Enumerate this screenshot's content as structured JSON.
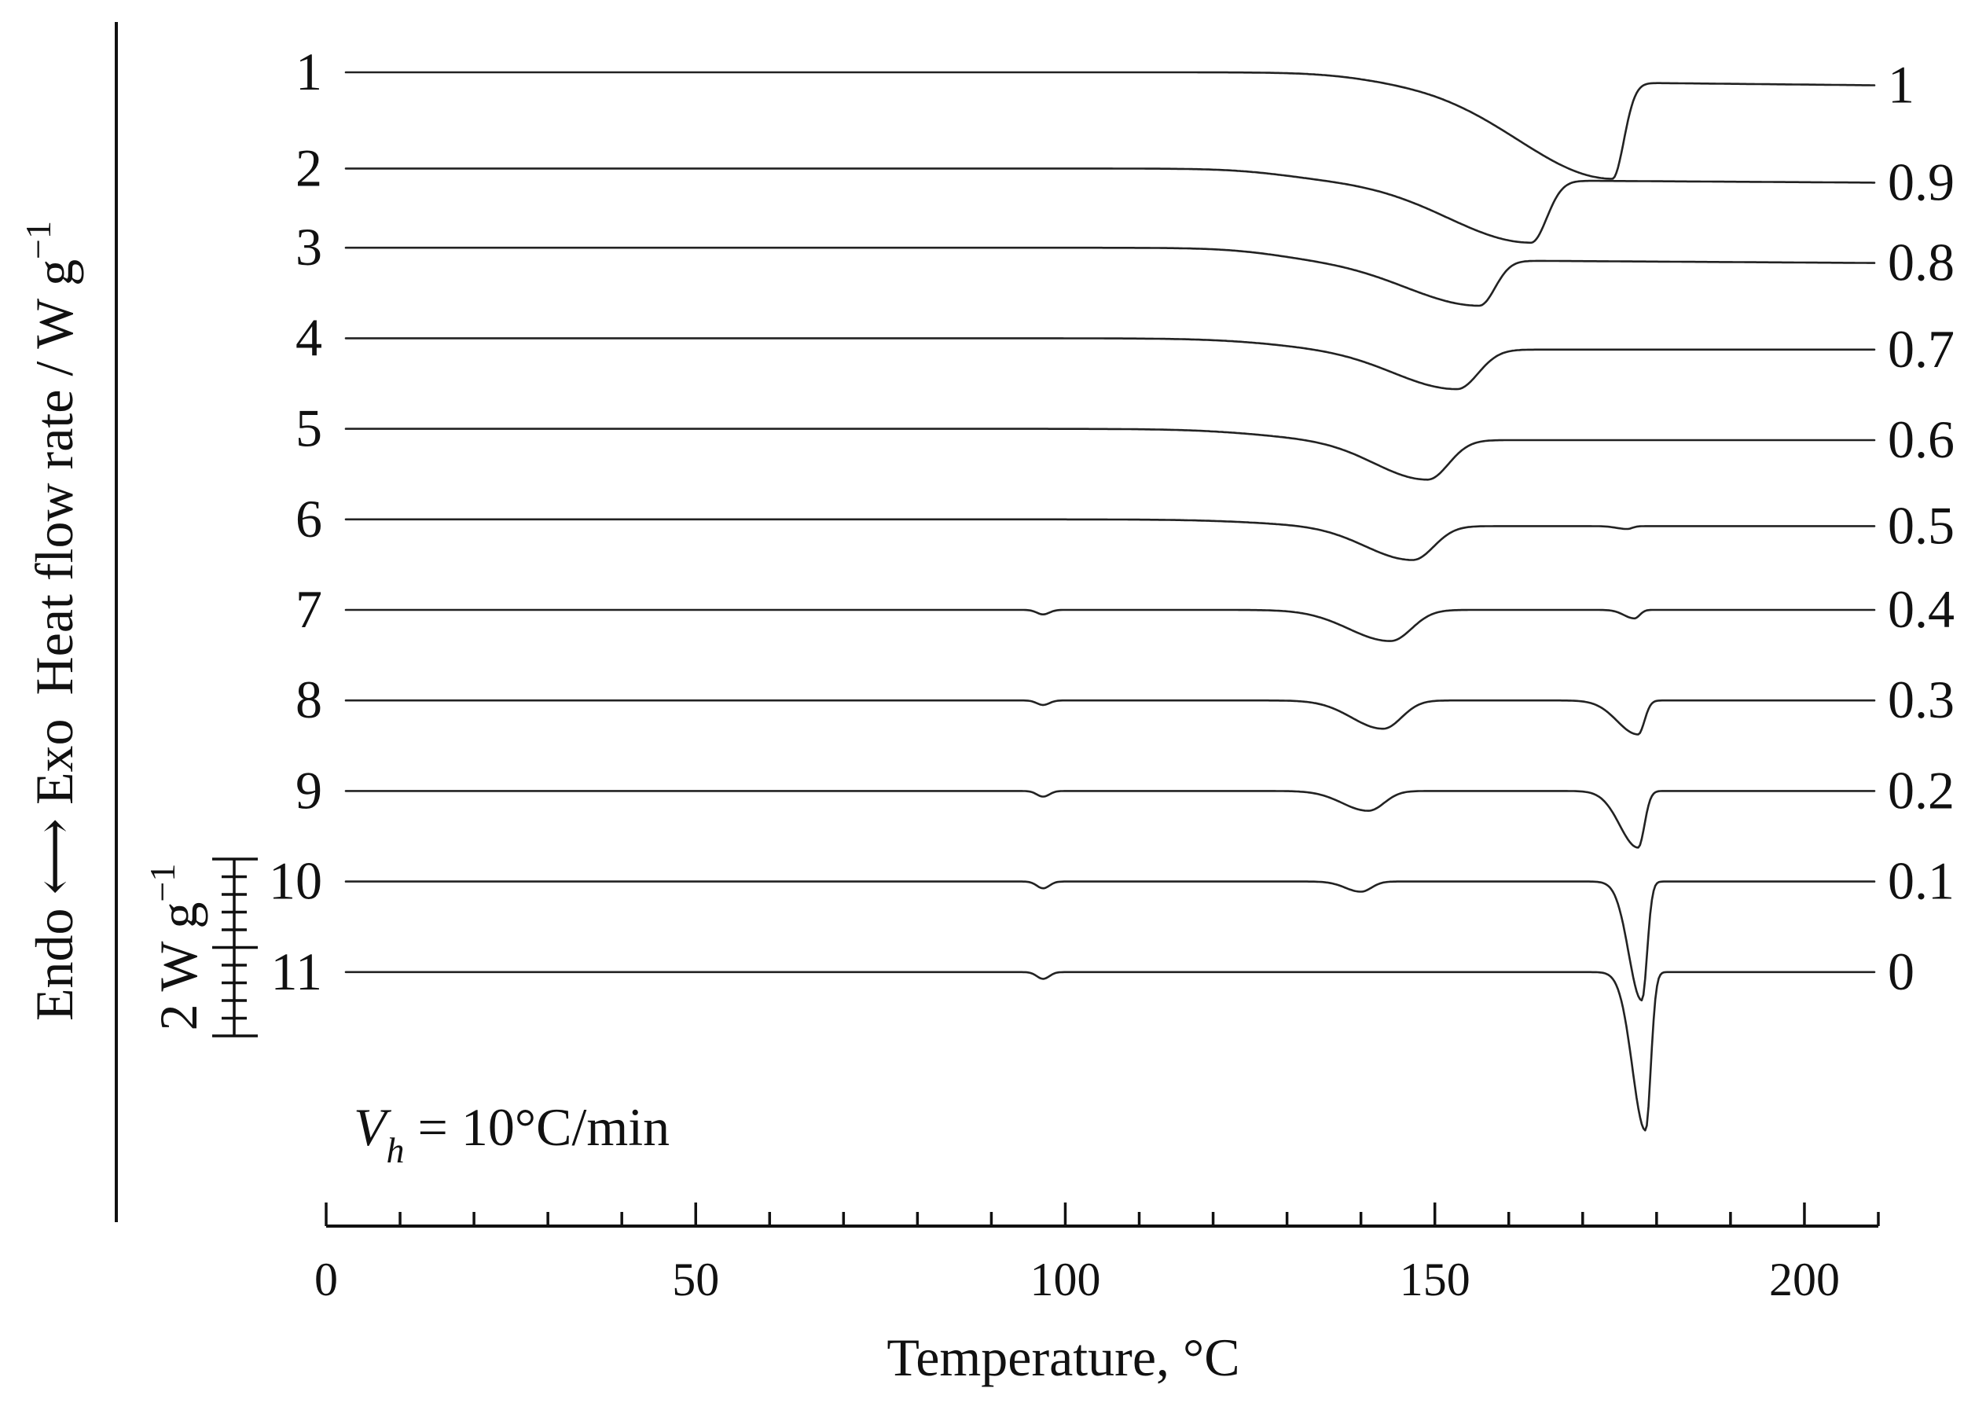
{
  "chart_data": {
    "type": "line",
    "title": "",
    "xlabel": "Temperature, °C",
    "ylabel": "Heat flow rate / W g",
    "ylabel_exponent": "−1",
    "direction_label": "Endo ⟷ Exo",
    "xlim": [
      0,
      210
    ],
    "x_major_ticks": [
      0,
      50,
      100,
      150,
      200
    ],
    "x_minor_tick_step": 10,
    "scale_bar": {
      "label": "2 W g",
      "exponent": "−1",
      "value_W_per_g": 2
    },
    "annotation": {
      "symbol": "V",
      "subscript": "h",
      "text": " = 10°C/min"
    },
    "offset_unit": "W/g",
    "series": [
      {
        "left_label": "1",
        "right_label": "1",
        "baseline": 0,
        "end_offset": -0.08,
        "features": [
          {
            "type": "step",
            "at": 140,
            "depth": 0.15,
            "w": 4
          },
          {
            "type": "melt",
            "at": 174,
            "depth": 1.7,
            "lw": 18,
            "rw": 2.2
          }
        ]
      },
      {
        "left_label": "2",
        "right_label": "0.9",
        "baseline": -1.7,
        "end_offset": -0.05,
        "features": [
          {
            "type": "step",
            "at": 129,
            "depth": 0.2,
            "w": 4
          },
          {
            "type": "melt",
            "at": 163,
            "depth": 1.1,
            "lw": 16,
            "rw": 3
          }
        ]
      },
      {
        "left_label": "3",
        "right_label": "0.8",
        "baseline": -3.1,
        "end_offset": -0.05,
        "features": [
          {
            "type": "step",
            "at": 128,
            "depth": 0.22,
            "w": 4
          },
          {
            "type": "melt",
            "at": 156,
            "depth": 0.8,
            "lw": 14,
            "rw": 3
          }
        ]
      },
      {
        "left_label": "4",
        "right_label": "0.7",
        "baseline": -4.7,
        "end_offset": 0.0,
        "features": [
          {
            "type": "step",
            "at": 128,
            "depth": 0.2,
            "w": 5
          },
          {
            "type": "melt",
            "at": 153,
            "depth": 0.7,
            "lw": 12,
            "rw": 4
          }
        ]
      },
      {
        "left_label": "5",
        "right_label": "0.6",
        "baseline": -6.3,
        "end_offset": 0.0,
        "features": [
          {
            "type": "step",
            "at": 126,
            "depth": 0.2,
            "w": 5
          },
          {
            "type": "melt",
            "at": 149,
            "depth": 0.7,
            "lw": 10,
            "rw": 4
          }
        ]
      },
      {
        "left_label": "6",
        "right_label": "0.5",
        "baseline": -7.9,
        "end_offset": 0.0,
        "features": [
          {
            "type": "step",
            "at": 126,
            "depth": 0.12,
            "w": 5
          },
          {
            "type": "melt",
            "at": 147,
            "depth": 0.6,
            "lw": 9,
            "rw": 4
          },
          {
            "type": "melt",
            "at": 176,
            "depth": 0.05,
            "lw": 2,
            "rw": 1
          }
        ]
      },
      {
        "left_label": "7",
        "right_label": "0.4",
        "baseline": -9.5,
        "end_offset": 0.0,
        "features": [
          {
            "type": "dip",
            "at": 97,
            "depth": 0.08,
            "w": 1.2
          },
          {
            "type": "melt",
            "at": 144,
            "depth": 0.55,
            "lw": 8,
            "rw": 4
          },
          {
            "type": "melt",
            "at": 177,
            "depth": 0.15,
            "lw": 2,
            "rw": 1
          }
        ]
      },
      {
        "left_label": "8",
        "right_label": "0.3",
        "baseline": -11.1,
        "end_offset": 0.0,
        "features": [
          {
            "type": "dip",
            "at": 97,
            "depth": 0.08,
            "w": 1.2
          },
          {
            "type": "melt",
            "at": 143,
            "depth": 0.5,
            "lw": 6,
            "rw": 3.5
          },
          {
            "type": "melt",
            "at": 177.5,
            "depth": 0.6,
            "lw": 4,
            "rw": 1.2
          }
        ]
      },
      {
        "left_label": "9",
        "right_label": "0.2",
        "baseline": -12.7,
        "end_offset": 0.0,
        "features": [
          {
            "type": "dip",
            "at": 97,
            "depth": 0.1,
            "w": 1.2
          },
          {
            "type": "melt",
            "at": 141,
            "depth": 0.35,
            "lw": 5,
            "rw": 3
          },
          {
            "type": "melt",
            "at": 177.5,
            "depth": 1.0,
            "lw": 3.5,
            "rw": 1.2
          }
        ]
      },
      {
        "left_label": "10",
        "right_label": "0.1",
        "baseline": -14.3,
        "end_offset": 0.0,
        "features": [
          {
            "type": "dip",
            "at": 97,
            "depth": 0.12,
            "w": 1.2
          },
          {
            "type": "melt",
            "at": 140,
            "depth": 0.18,
            "lw": 3,
            "rw": 2
          },
          {
            "type": "melt",
            "at": 178,
            "depth": 2.1,
            "lw": 2.5,
            "rw": 1
          }
        ]
      },
      {
        "left_label": "11",
        "right_label": "0",
        "baseline": -15.9,
        "end_offset": 0.0,
        "features": [
          {
            "type": "dip",
            "at": 97,
            "depth": 0.12,
            "w": 1.2
          },
          {
            "type": "melt",
            "at": 178.5,
            "depth": 2.8,
            "lw": 2.5,
            "rw": 1
          }
        ]
      }
    ]
  }
}
